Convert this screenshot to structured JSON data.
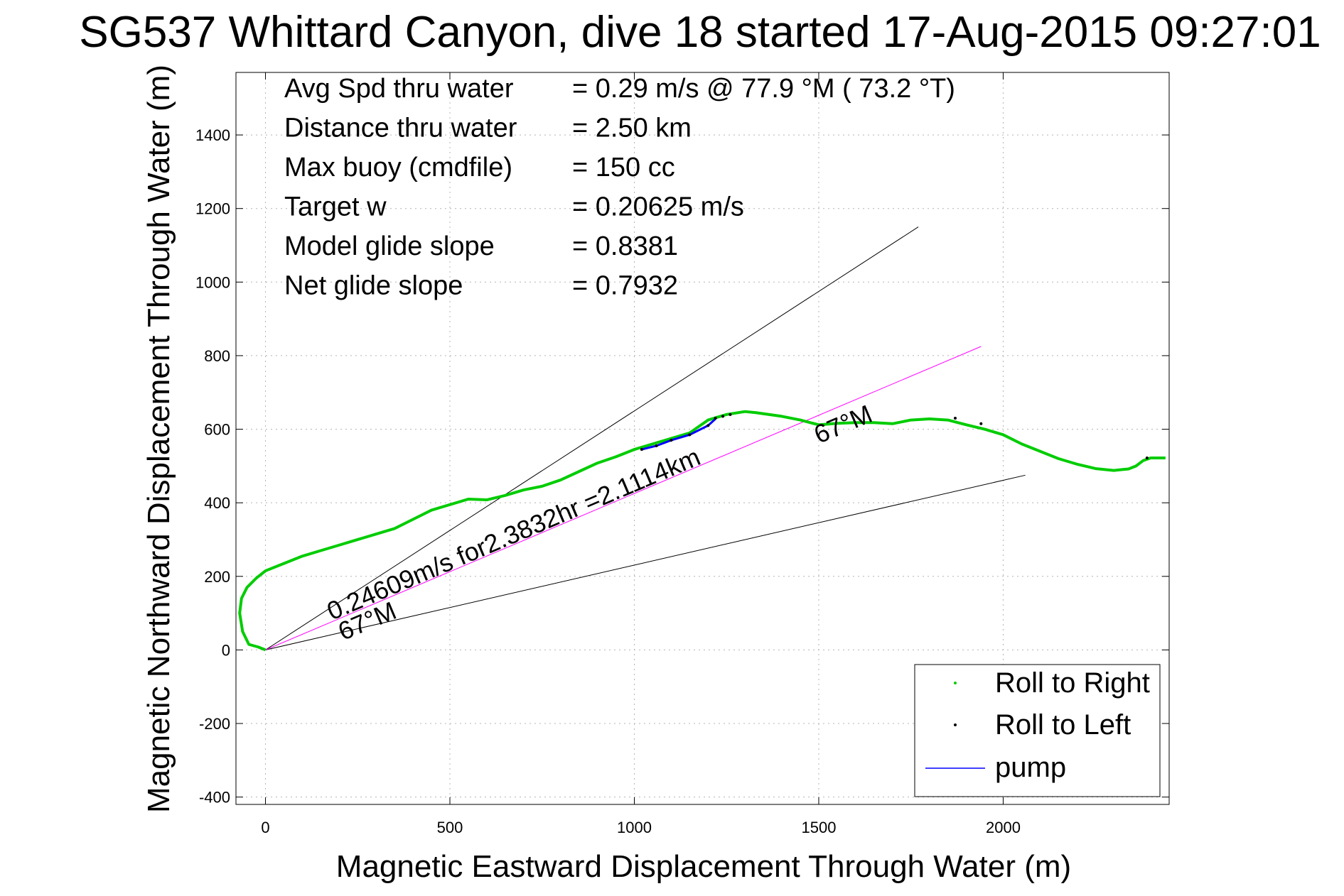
{
  "chart_data": {
    "type": "line",
    "title": "SG537 Whittard Canyon, dive 18 started 17-Aug-2015 09:27:01",
    "xlabel": "Magnetic Eastward Displacement Through Water (m)",
    "ylabel": "Magnetic Northward Displacement Through Water (m)",
    "xlim": [
      -80,
      2450
    ],
    "ylim": [
      -420,
      1570
    ],
    "xticks": [
      0,
      500,
      1000,
      1500,
      2000
    ],
    "yticks": [
      -400,
      -200,
      0,
      200,
      400,
      600,
      800,
      1000,
      1200,
      1400
    ],
    "grid": true,
    "legend_position": "bottom-right",
    "stats": [
      {
        "label": "Avg Spd thru water",
        "value": "=  0.29 m/s @  77.9 °M ( 73.2 °T)"
      },
      {
        "label": "Distance thru water",
        "value": "=  2.50 km"
      },
      {
        "label": "Max buoy (cmdfile)",
        "value": "= 150 cc"
      },
      {
        "label": "Target w",
        "value": "= 0.20625 m/s"
      },
      {
        "label": "Model glide slope",
        "value": "= 0.8381"
      },
      {
        "label": "Net glide slope",
        "value": "= 0.7932"
      }
    ],
    "series": [
      {
        "name": "Roll to Right",
        "color": "#00cc00",
        "x": [
          0,
          -20,
          -45,
          -62,
          -70,
          -65,
          -50,
          -25,
          0,
          50,
          100,
          150,
          200,
          250,
          300,
          350,
          400,
          450,
          500,
          550,
          600,
          650,
          700,
          750,
          800,
          850,
          900,
          950,
          1000,
          1050,
          1100,
          1150,
          1200,
          1250,
          1300,
          1330,
          1400,
          1450,
          1500,
          1550,
          1600,
          1650,
          1700,
          1750,
          1800,
          1850,
          1900,
          1950,
          2000,
          2050,
          2100,
          2150,
          2200,
          2250,
          2300,
          2320,
          2340,
          2360,
          2380,
          2400,
          2420,
          2440
        ],
        "y": [
          0,
          8,
          15,
          50,
          100,
          140,
          170,
          195,
          215,
          235,
          255,
          270,
          285,
          300,
          315,
          330,
          355,
          380,
          395,
          410,
          408,
          420,
          435,
          445,
          462,
          485,
          508,
          525,
          545,
          560,
          575,
          590,
          625,
          640,
          648,
          645,
          635,
          625,
          612,
          616,
          618,
          618,
          615,
          625,
          628,
          625,
          612,
          600,
          585,
          560,
          540,
          520,
          505,
          493,
          488,
          490,
          492,
          500,
          515,
          522,
          522,
          522
        ]
      },
      {
        "name": "Roll to Left",
        "color": "#000000",
        "x": [
          1020,
          1060,
          1100,
          1150,
          1200,
          1220,
          1240,
          1260,
          1870,
          1940,
          2390
        ],
        "y": [
          545,
          555,
          570,
          585,
          610,
          630,
          635,
          640,
          630,
          615,
          522
        ]
      },
      {
        "name": "pump",
        "color": "#0000ff",
        "x": [
          1020,
          1060,
          1100,
          1150,
          1200,
          1220
        ],
        "y": [
          545,
          555,
          570,
          585,
          610,
          628
        ]
      }
    ],
    "reference_lines": [
      {
        "x": [
          0,
          1770
        ],
        "y": [
          0,
          1150
        ],
        "color": "#000000"
      },
      {
        "x": [
          0,
          2060
        ],
        "y": [
          0,
          475
        ],
        "color": "#000000"
      },
      {
        "x": [
          0,
          1940
        ],
        "y": [
          0,
          825
        ],
        "color": "#ff00ff"
      }
    ],
    "annotations": [
      {
        "text": "0.24609m/s for2.3832hr =2.1114km",
        "x": 180,
        "y": 80,
        "angle": -23
      },
      {
        "text": "67°M",
        "x": 210,
        "y": 25,
        "angle": -23
      },
      {
        "text": "67°M",
        "x": 1500,
        "y": 560,
        "angle": -23
      }
    ]
  }
}
